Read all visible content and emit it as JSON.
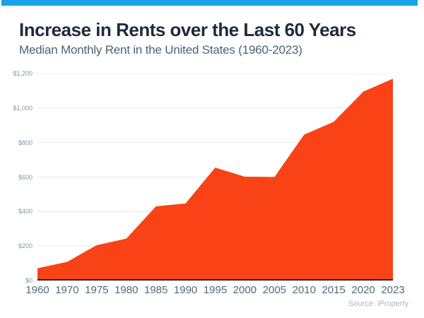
{
  "page": {
    "top_bar_color": "#18A2E9",
    "background_color": "#FFFFFF"
  },
  "header": {
    "title": "Increase in Rents over the Last 60 Years",
    "subtitle": "Median Monthly Rent in the United States (1960-2023)"
  },
  "chart_data": {
    "type": "area",
    "title": "Increase in Rents over the Last 60 Years",
    "subtitle": "Median Monthly Rent in the United States (1960-2023)",
    "categories": [
      "1960",
      "1970",
      "1975",
      "1980",
      "1985",
      "1990",
      "1995",
      "2000",
      "2005",
      "2010",
      "2015",
      "2020",
      "2023"
    ],
    "values": [
      71,
      108,
      205,
      243,
      430,
      447,
      655,
      602,
      600,
      845,
      920,
      1095,
      1170
    ],
    "ylim": [
      0,
      1200
    ],
    "yticks": [
      {
        "value": 0,
        "label": "$0"
      },
      {
        "value": 200,
        "label": "$200"
      },
      {
        "value": 400,
        "label": "$400"
      },
      {
        "value": 600,
        "label": "$600"
      },
      {
        "value": 800,
        "label": "$800"
      },
      {
        "value": 1000,
        "label": "$1,000"
      },
      {
        "value": 1200,
        "label": "$1,200"
      }
    ],
    "grid": "horizontal",
    "legend": "none",
    "area_color": "#F94316",
    "axis_line_color": "#1B2430",
    "grid_color": "#E7E7E7",
    "source": "Source: iProperty"
  }
}
